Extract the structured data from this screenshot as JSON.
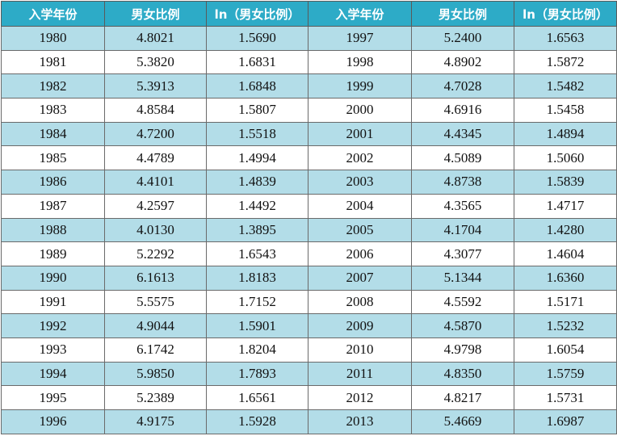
{
  "table": {
    "headers": [
      "入学年份",
      "男女比例",
      "ln（男女比例）",
      "入学年份",
      "男女比例",
      "ln（男女比例）"
    ],
    "rows": [
      [
        "1980",
        "4.8021",
        "1.5690",
        "1997",
        "5.2400",
        "1.6563"
      ],
      [
        "1981",
        "5.3820",
        "1.6831",
        "1998",
        "4.8902",
        "1.5872"
      ],
      [
        "1982",
        "5.3913",
        "1.6848",
        "1999",
        "4.7028",
        "1.5482"
      ],
      [
        "1983",
        "4.8584",
        "1.5807",
        "2000",
        "4.6916",
        "1.5458"
      ],
      [
        "1984",
        "4.7200",
        "1.5518",
        "2001",
        "4.4345",
        "1.4894"
      ],
      [
        "1985",
        "4.4789",
        "1.4994",
        "2002",
        "4.5089",
        "1.5060"
      ],
      [
        "1986",
        "4.4101",
        "1.4839",
        "2003",
        "4.8738",
        "1.5839"
      ],
      [
        "1987",
        "4.2597",
        "1.4492",
        "2004",
        "4.3565",
        "1.4717"
      ],
      [
        "1988",
        "4.0130",
        "1.3895",
        "2005",
        "4.1704",
        "1.4280"
      ],
      [
        "1989",
        "5.2292",
        "1.6543",
        "2006",
        "4.3077",
        "1.4604"
      ],
      [
        "1990",
        "6.1613",
        "1.8183",
        "2007",
        "5.1344",
        "1.6360"
      ],
      [
        "1991",
        "5.5575",
        "1.7152",
        "2008",
        "4.5592",
        "1.5171"
      ],
      [
        "1992",
        "4.9044",
        "1.5901",
        "2009",
        "4.5870",
        "1.5232"
      ],
      [
        "1993",
        "6.1742",
        "1.8204",
        "2010",
        "4.9798",
        "1.6054"
      ],
      [
        "1994",
        "5.9850",
        "1.7893",
        "2011",
        "4.8350",
        "1.5759"
      ],
      [
        "1995",
        "5.2389",
        "1.6561",
        "2012",
        "4.8217",
        "1.5731"
      ],
      [
        "1996",
        "4.9175",
        "1.5928",
        "2013",
        "5.4669",
        "1.6987"
      ]
    ],
    "colors": {
      "header_bg": "#2dabc7",
      "header_text": "#ffffff",
      "stripe_bg": "#b3dde8",
      "plain_bg": "#ffffff"
    }
  }
}
